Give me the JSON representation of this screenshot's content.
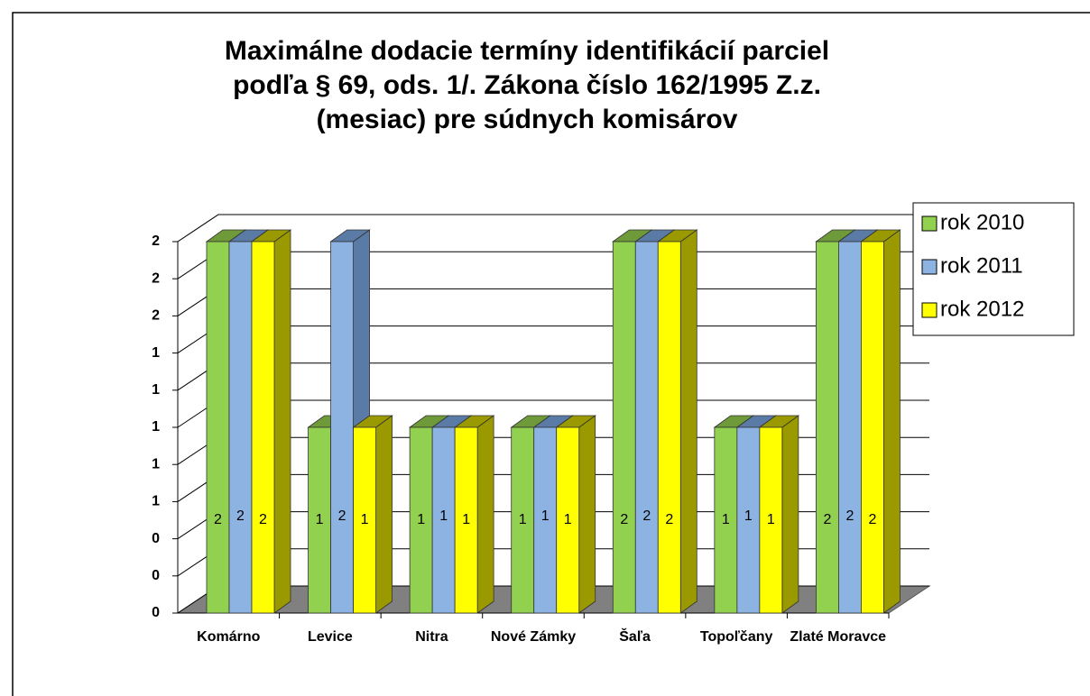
{
  "chart_data": {
    "type": "bar3d",
    "title": "Maximálne dodacie termíny identifikácií parciel podľa § 69, ods. 1/. Zákona číslo 162/1995 Z.z. (mesiac) pre súdnych komisárov",
    "categories": [
      "Komárno",
      "Levice",
      "Nitra",
      "Nové Zámky",
      "Šaľa",
      "Topoľčany",
      "Zlaté Moravce"
    ],
    "series": [
      {
        "name": "rok 2010",
        "color": "#92d050",
        "side": "#6f9a3a",
        "values": [
          2,
          1,
          1,
          1,
          2,
          1,
          2
        ]
      },
      {
        "name": "rok 2011",
        "color": "#8db3e2",
        "side": "#5a7ba6",
        "values": [
          2,
          2,
          1,
          1,
          2,
          1,
          2
        ]
      },
      {
        "name": "rok 2012",
        "color": "#ffff00",
        "side": "#9a9a00",
        "values": [
          2,
          1,
          1,
          1,
          2,
          1,
          2
        ]
      }
    ],
    "ylim": [
      0,
      2
    ],
    "yticks": [
      0,
      {
        "value": 0.2,
        "label": "0"
      },
      {
        "value": 0.4,
        "label": "0"
      },
      {
        "value": 0.6,
        "label": "1"
      },
      {
        "value": 0.8,
        "label": "1"
      },
      1,
      {
        "value": 1.2,
        "label": "1"
      },
      {
        "value": 1.4,
        "label": "1"
      },
      {
        "value": 1.6,
        "label": "2"
      },
      {
        "value": 1.8,
        "label": "2"
      },
      2
    ],
    "grid": true,
    "legend": "right"
  }
}
